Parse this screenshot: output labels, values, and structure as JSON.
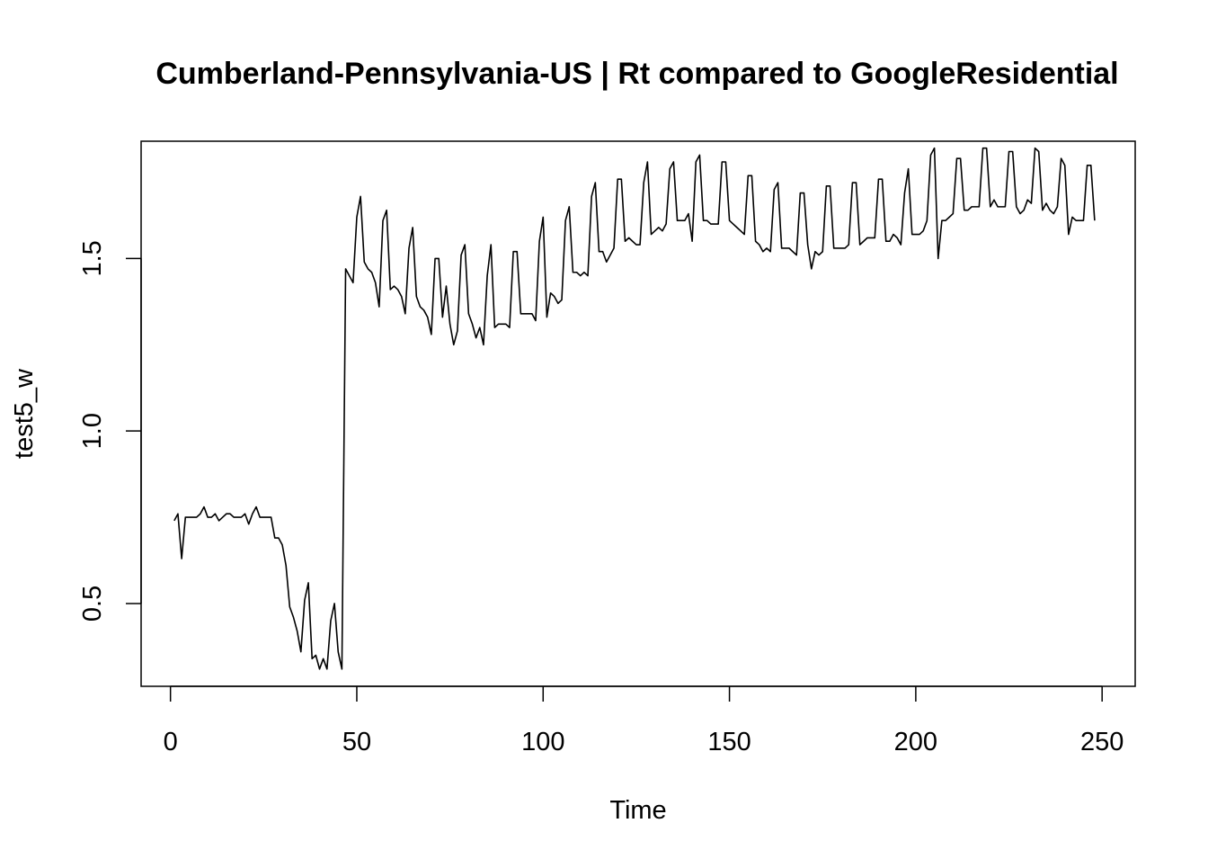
{
  "chart_data": {
    "type": "line",
    "title": "Cumberland-Pennsylvania-US | Rt compared to GoogleResidential",
    "xlabel": "Time",
    "ylabel": "test5_w",
    "xlim": [
      -7.88,
      258.88
    ],
    "ylim": [
      0.26,
      1.84
    ],
    "x_ticks": [
      0,
      50,
      100,
      150,
      200,
      250
    ],
    "x_tick_labels": [
      "0",
      "50",
      "100",
      "150",
      "200",
      "250"
    ],
    "y_ticks": [
      0.5,
      1.0,
      1.5
    ],
    "y_tick_labels": [
      "0.5",
      "1.0",
      "1.5"
    ],
    "grid": false,
    "legend": "none",
    "line_color": "#000000",
    "series": [
      {
        "x_start": 1,
        "x_step": 1,
        "values": [
          0.74,
          0.76,
          0.63,
          0.75,
          0.75,
          0.75,
          0.75,
          0.76,
          0.78,
          0.75,
          0.75,
          0.76,
          0.74,
          0.75,
          0.76,
          0.76,
          0.75,
          0.75,
          0.75,
          0.76,
          0.73,
          0.76,
          0.78,
          0.75,
          0.75,
          0.75,
          0.75,
          0.69,
          0.69,
          0.67,
          0.61,
          0.49,
          0.46,
          0.42,
          0.36,
          0.51,
          0.56,
          0.34,
          0.35,
          0.31,
          0.34,
          0.31,
          0.45,
          0.5,
          0.36,
          0.31,
          1.47,
          1.45,
          1.43,
          1.62,
          1.68,
          1.49,
          1.47,
          1.46,
          1.43,
          1.36,
          1.61,
          1.64,
          1.41,
          1.42,
          1.41,
          1.39,
          1.34,
          1.53,
          1.59,
          1.39,
          1.36,
          1.35,
          1.33,
          1.28,
          1.5,
          1.5,
          1.33,
          1.42,
          1.31,
          1.25,
          1.29,
          1.51,
          1.54,
          1.34,
          1.31,
          1.27,
          1.3,
          1.25,
          1.45,
          1.54,
          1.3,
          1.31,
          1.31,
          1.31,
          1.3,
          1.52,
          1.52,
          1.34,
          1.34,
          1.34,
          1.34,
          1.32,
          1.55,
          1.62,
          1.33,
          1.4,
          1.39,
          1.37,
          1.38,
          1.61,
          1.65,
          1.46,
          1.46,
          1.45,
          1.46,
          1.45,
          1.68,
          1.72,
          1.52,
          1.52,
          1.49,
          1.51,
          1.53,
          1.73,
          1.73,
          1.55,
          1.56,
          1.55,
          1.54,
          1.54,
          1.72,
          1.78,
          1.57,
          1.58,
          1.59,
          1.58,
          1.6,
          1.76,
          1.78,
          1.61,
          1.61,
          1.61,
          1.63,
          1.55,
          1.78,
          1.8,
          1.61,
          1.61,
          1.6,
          1.6,
          1.6,
          1.78,
          1.78,
          1.61,
          1.6,
          1.59,
          1.58,
          1.57,
          1.74,
          1.74,
          1.55,
          1.54,
          1.52,
          1.53,
          1.52,
          1.7,
          1.72,
          1.53,
          1.53,
          1.53,
          1.52,
          1.51,
          1.69,
          1.69,
          1.54,
          1.47,
          1.52,
          1.51,
          1.52,
          1.71,
          1.71,
          1.53,
          1.53,
          1.53,
          1.53,
          1.54,
          1.72,
          1.72,
          1.54,
          1.55,
          1.56,
          1.56,
          1.56,
          1.73,
          1.73,
          1.55,
          1.55,
          1.57,
          1.56,
          1.54,
          1.69,
          1.76,
          1.57,
          1.57,
          1.57,
          1.58,
          1.61,
          1.8,
          1.82,
          1.5,
          1.61,
          1.61,
          1.62,
          1.63,
          1.79,
          1.79,
          1.64,
          1.64,
          1.65,
          1.65,
          1.65,
          1.82,
          1.82,
          1.65,
          1.67,
          1.65,
          1.65,
          1.65,
          1.81,
          1.81,
          1.65,
          1.63,
          1.64,
          1.67,
          1.66,
          1.82,
          1.81,
          1.64,
          1.66,
          1.64,
          1.63,
          1.65,
          1.79,
          1.77,
          1.57,
          1.62,
          1.61,
          1.61,
          1.61,
          1.77,
          1.77,
          1.61
        ]
      }
    ]
  }
}
